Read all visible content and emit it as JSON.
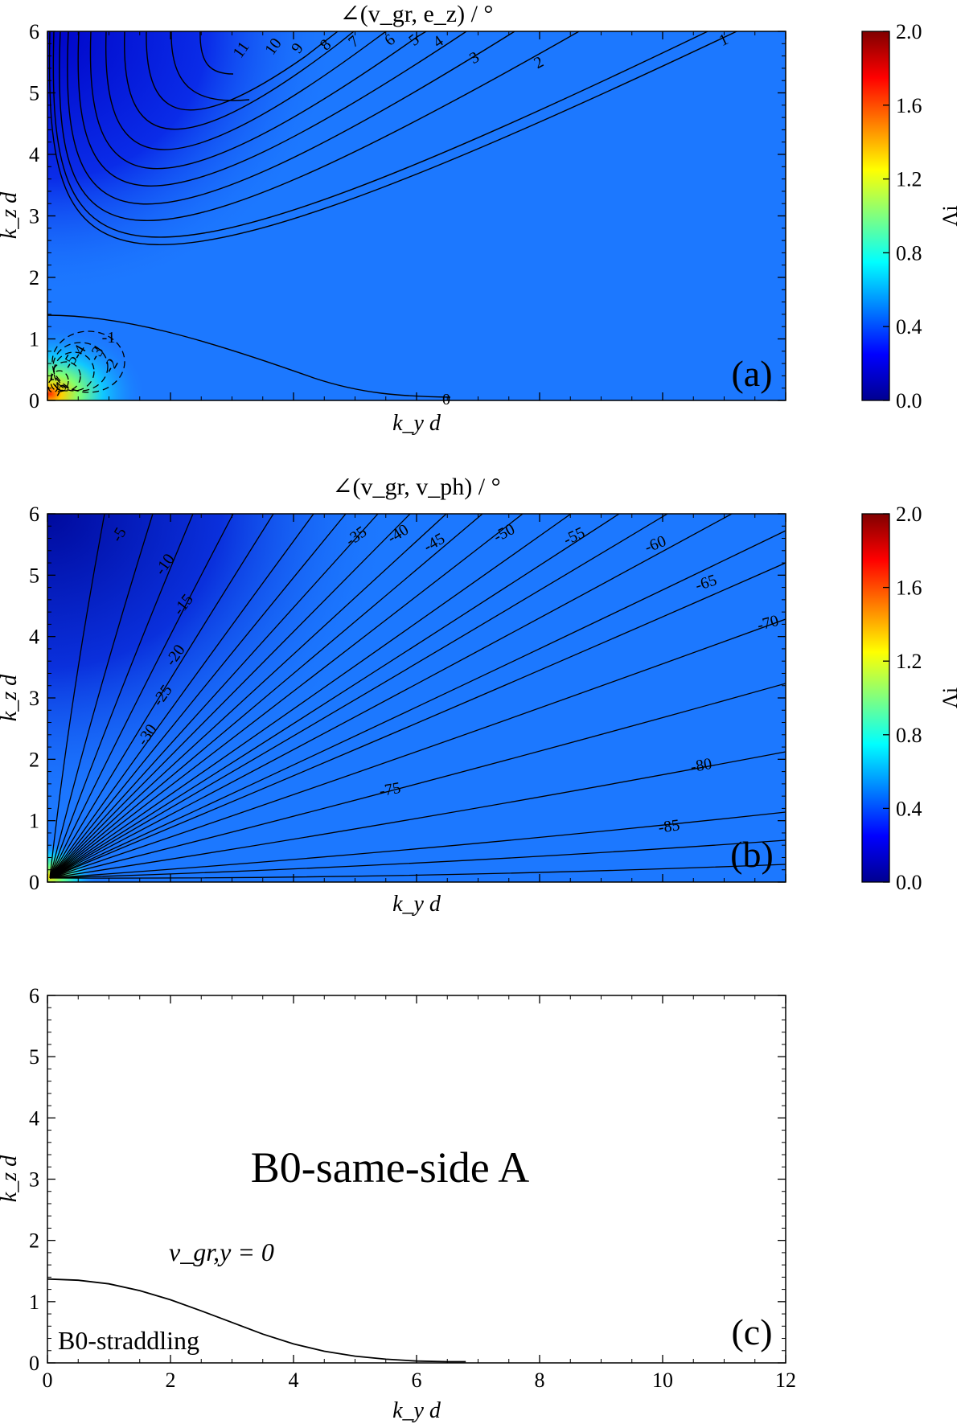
{
  "chart_data": [
    {
      "type": "heatmap",
      "panel_label": "(a)",
      "title": "∠(v_gr, e_z) / °",
      "xlabel": "k_y d",
      "ylabel": "k_z d",
      "xlim": [
        0,
        12
      ],
      "ylim": [
        0,
        6
      ],
      "y_ticks": [
        "0",
        "1",
        "2",
        "3",
        "4",
        "5",
        "6"
      ],
      "colorbar": {
        "label": "Λi",
        "range": [
          0.0,
          2.0
        ],
        "ticks": [
          "0.0",
          "0.4",
          "0.8",
          "1.2",
          "1.6",
          "2.0"
        ]
      },
      "solid_contour_labels": [
        "11",
        "10",
        "9",
        "8",
        "7",
        "6",
        "5",
        "4",
        "3",
        "2",
        "1",
        "0"
      ],
      "dashed_contour_labels": [
        "-1",
        "-2",
        "-3",
        "-4",
        "-5",
        "-6"
      ],
      "colors": {
        "background": "#1c78ff",
        "upper_left": "#0012dc",
        "hot_spot": "#ff3000"
      }
    },
    {
      "type": "heatmap",
      "panel_label": "(b)",
      "title": "∠(v_gr, v_ph) / °",
      "xlabel": "k_y d",
      "ylabel": "k_z d",
      "xlim": [
        0,
        12
      ],
      "ylim": [
        0,
        6
      ],
      "y_ticks": [
        "0",
        "1",
        "2",
        "3",
        "4",
        "5",
        "6"
      ],
      "colorbar": {
        "label": "Λi",
        "range": [
          0.0,
          2.0
        ],
        "ticks": [
          "0.0",
          "0.4",
          "0.8",
          "1.2",
          "1.6",
          "2.0"
        ]
      },
      "contour_labels": [
        "-5",
        "-10",
        "-15",
        "-20",
        "-25",
        "-30",
        "-35",
        "-40",
        "-45",
        "-50",
        "-55",
        "-60",
        "-65",
        "-70",
        "-75",
        "-80",
        "-85"
      ],
      "colors": {
        "background": "#1c78ff",
        "upper_left": "#000a9e"
      }
    },
    {
      "type": "line",
      "panel_label": "(c)",
      "xlabel": "k_y d",
      "ylabel": "k_z d",
      "xlim": [
        0,
        12
      ],
      "ylim": [
        0,
        6
      ],
      "x_ticks": [
        "0",
        "2",
        "4",
        "6",
        "8",
        "10",
        "12"
      ],
      "y_ticks": [
        "0",
        "1",
        "2",
        "3",
        "4",
        "5",
        "6"
      ],
      "series": [
        {
          "name": "v_gr,y = 0",
          "x": [
            0,
            0.5,
            1,
            1.5,
            2,
            2.5,
            3,
            3.5,
            4,
            4.5,
            5,
            5.5,
            6,
            6.5,
            6.8
          ],
          "y": [
            1.37,
            1.35,
            1.29,
            1.18,
            1.03,
            0.85,
            0.66,
            0.47,
            0.31,
            0.19,
            0.11,
            0.06,
            0.03,
            0.02,
            0.02
          ]
        }
      ],
      "region_labels": {
        "upper": "B0-same-side A",
        "lower": "B0-straddling"
      }
    }
  ]
}
